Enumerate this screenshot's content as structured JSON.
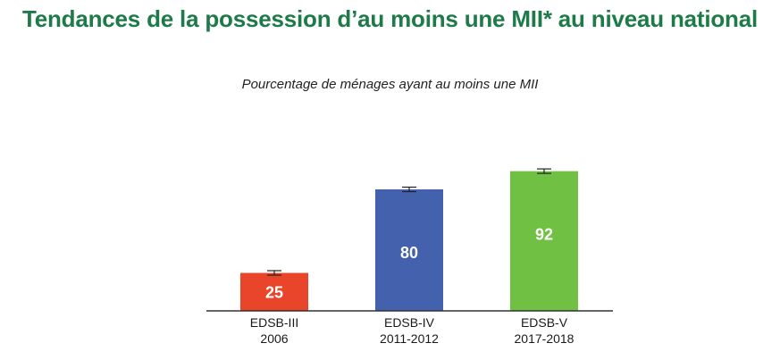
{
  "chart_data": {
    "type": "bar",
    "title": "Tendances de la possession d’au moins une MII* au niveau national",
    "subtitle": "Pourcentage de ménages ayant au moins une MII",
    "categories": [
      {
        "line1": "EDSB-III",
        "line2": "2006"
      },
      {
        "line1": "EDSB-IV",
        "line2": "2011-2012"
      },
      {
        "line1": "EDSB-V",
        "line2": "2017-2018"
      }
    ],
    "values": [
      25,
      80,
      92
    ],
    "value_labels": [
      "25",
      "80",
      "92"
    ],
    "colors": [
      "#e8452a",
      "#4361ad",
      "#70c043"
    ],
    "error_bars": true,
    "ylim": [
      0,
      100
    ],
    "xlabel": "",
    "ylabel": "",
    "grid": false,
    "legend": "none"
  }
}
